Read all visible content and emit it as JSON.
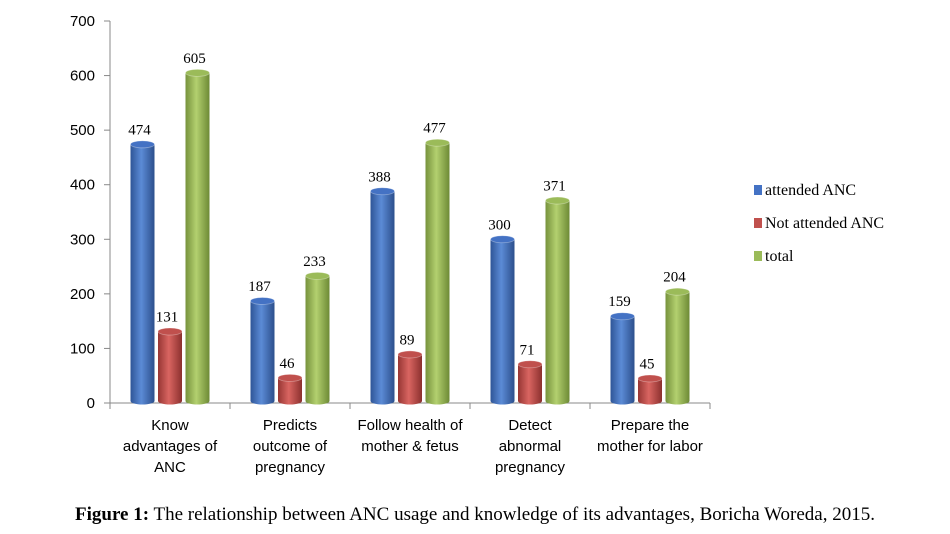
{
  "caption": {
    "label": "Figure 1:",
    "text": " The relationship between ANC usage and knowledge of its advantages, Boricha Woreda, 2015."
  },
  "chart_data": {
    "type": "bar",
    "categories": [
      [
        "Know",
        "advantages of",
        "ANC"
      ],
      [
        "Predicts",
        "outcome of",
        "pregnancy"
      ],
      [
        "Follow health of",
        "mother & fetus"
      ],
      [
        "Detect",
        "abnormal",
        "pregnancy"
      ],
      [
        "Prepare the",
        "mother for labor"
      ]
    ],
    "series": [
      {
        "name": "attended ANC",
        "color": "#4472C4",
        "values": [
          474,
          187,
          388,
          300,
          159
        ]
      },
      {
        "name": "Not attended ANC",
        "color": "#C0504D",
        "values": [
          131,
          46,
          89,
          71,
          45
        ]
      },
      {
        "name": "total",
        "color": "#9BBB59",
        "values": [
          605,
          233,
          477,
          371,
          204
        ]
      }
    ],
    "ylim": [
      0,
      700
    ],
    "yticks": [
      0,
      100,
      200,
      300,
      400,
      500,
      600,
      700
    ],
    "legend_position": "right",
    "grid": false
  }
}
